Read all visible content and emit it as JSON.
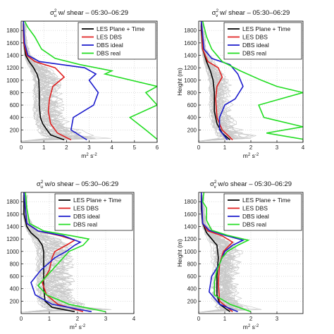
{
  "chart_data": [
    {
      "type": "line",
      "title_sym": "σ",
      "title_sup": "2",
      "title_sub": "u",
      "title_rest": " w/ shear – 05:30–06:29",
      "xlabel_main": "m",
      "xlabel_sup1": "2",
      "xlabel_mid": " s",
      "xlabel_sup2": "-2",
      "ylabel": "",
      "xlim": [
        0,
        6
      ],
      "ylim": [
        0,
        1950
      ],
      "xticks": [
        "0",
        "1",
        "2",
        "3",
        "4",
        "5",
        "6"
      ],
      "yticks": [
        "200",
        "400",
        "600",
        "800",
        "1000",
        "1200",
        "1400",
        "1600",
        "1800"
      ],
      "legend_position": "top-right",
      "grid": true,
      "series": [
        {
          "name": "LES Plane + Time",
          "color": "#000000",
          "points": [
            [
              1.9,
              40
            ],
            [
              1.3,
              120
            ],
            [
              1.1,
              220
            ],
            [
              0.95,
              300
            ],
            [
              0.85,
              400
            ],
            [
              0.8,
              600
            ],
            [
              0.8,
              800
            ],
            [
              0.78,
              1000
            ],
            [
              0.7,
              1100
            ],
            [
              0.55,
              1200
            ],
            [
              0.35,
              1300
            ],
            [
              0.2,
              1400
            ],
            [
              0.12,
              1600
            ],
            [
              0.1,
              1800
            ],
            [
              0.1,
              1950
            ]
          ]
        },
        {
          "name": "LES DBS",
          "color": "#e02020",
          "points": [
            [
              2.2,
              40
            ],
            [
              1.6,
              150
            ],
            [
              1.3,
              300
            ],
            [
              1.2,
              500
            ],
            [
              1.25,
              700
            ],
            [
              1.4,
              900
            ],
            [
              1.9,
              1050
            ],
            [
              1.5,
              1200
            ],
            [
              0.6,
              1300
            ],
            [
              0.25,
              1400
            ],
            [
              0.12,
              1600
            ],
            [
              0.1,
              1950
            ]
          ]
        },
        {
          "name": "DBS ideal",
          "color": "#1a1acc",
          "points": [
            [
              2.9,
              40
            ],
            [
              2.2,
              200
            ],
            [
              2.3,
              400
            ],
            [
              3.2,
              600
            ],
            [
              3.4,
              800
            ],
            [
              3.0,
              1000
            ],
            [
              3.3,
              1100
            ],
            [
              2.8,
              1200
            ],
            [
              0.8,
              1300
            ],
            [
              0.3,
              1400
            ],
            [
              0.15,
              1600
            ],
            [
              0.1,
              1950
            ]
          ]
        },
        {
          "name": "DBS real",
          "color": "#22dd22",
          "points": [
            [
              6.0,
              50
            ],
            [
              5.5,
              200
            ],
            [
              4.8,
              400
            ],
            [
              6.0,
              600
            ],
            [
              5.5,
              800
            ],
            [
              6.0,
              900
            ],
            [
              3.7,
              1100
            ],
            [
              4.0,
              1150
            ],
            [
              2.6,
              1250
            ],
            [
              1.5,
              1350
            ],
            [
              0.9,
              1500
            ],
            [
              0.6,
              1700
            ],
            [
              0.3,
              1850
            ],
            [
              0.15,
              1950
            ]
          ]
        }
      ]
    },
    {
      "type": "line",
      "title_sym": "σ",
      "title_sup": "2",
      "title_sub": "v",
      "title_rest": " w/ shear – 05:30–06:29",
      "xlabel_main": "m",
      "xlabel_sup1": "2",
      "xlabel_mid": " s",
      "xlabel_sup2": "-2",
      "ylabel": "Height (m)",
      "xlim": [
        0,
        4
      ],
      "ylim": [
        0,
        1950
      ],
      "xticks": [
        "0",
        "1",
        "2",
        "3",
        "4"
      ],
      "yticks": [
        "200",
        "400",
        "600",
        "800",
        "1000",
        "1200",
        "1400",
        "1600",
        "1800"
      ],
      "legend_position": "top-right",
      "grid": true,
      "series": [
        {
          "name": "LES Plane + Time",
          "color": "#000000",
          "points": [
            [
              1.2,
              40
            ],
            [
              0.9,
              150
            ],
            [
              0.7,
              300
            ],
            [
              0.6,
              500
            ],
            [
              0.6,
              800
            ],
            [
              0.55,
              1000
            ],
            [
              0.45,
              1150
            ],
            [
              0.3,
              1300
            ],
            [
              0.15,
              1500
            ],
            [
              0.1,
              1800
            ],
            [
              0.1,
              1950
            ]
          ]
        },
        {
          "name": "LES DBS",
          "color": "#e02020",
          "points": [
            [
              1.3,
              40
            ],
            [
              0.9,
              200
            ],
            [
              0.7,
              400
            ],
            [
              0.65,
              700
            ],
            [
              0.7,
              900
            ],
            [
              0.9,
              1050
            ],
            [
              0.75,
              1200
            ],
            [
              0.35,
              1300
            ],
            [
              0.15,
              1500
            ],
            [
              0.1,
              1950
            ]
          ]
        },
        {
          "name": "DBS ideal",
          "color": "#1a1acc",
          "points": [
            [
              1.1,
              40
            ],
            [
              0.8,
              200
            ],
            [
              0.8,
              400
            ],
            [
              1.0,
              600
            ],
            [
              1.4,
              700
            ],
            [
              1.7,
              900
            ],
            [
              1.5,
              1100
            ],
            [
              1.2,
              1250
            ],
            [
              0.5,
              1350
            ],
            [
              0.2,
              1500
            ],
            [
              0.1,
              1950
            ]
          ]
        },
        {
          "name": "DBS real",
          "color": "#22dd22",
          "points": [
            [
              4.0,
              50
            ],
            [
              2.6,
              150
            ],
            [
              4.0,
              250
            ],
            [
              2.5,
              400
            ],
            [
              2.3,
              600
            ],
            [
              4.0,
              800
            ],
            [
              3.0,
              900
            ],
            [
              2.4,
              1000
            ],
            [
              1.6,
              1150
            ],
            [
              0.9,
              1300
            ],
            [
              0.5,
              1500
            ],
            [
              0.3,
              1700
            ],
            [
              0.15,
              1950
            ]
          ]
        }
      ]
    },
    {
      "type": "line",
      "title_sym": "σ",
      "title_sup": "2",
      "title_sub": "u",
      "title_rest": " w/o shear – 05:30–06:29",
      "xlabel_main": "m",
      "xlabel_sup1": "2",
      "xlabel_mid": " s",
      "xlabel_sup2": "-2",
      "ylabel": "",
      "xlim": [
        0,
        4
      ],
      "ylim": [
        0,
        1950
      ],
      "xticks": [
        "0",
        "1",
        "2",
        "3",
        "4"
      ],
      "yticks": [
        "200",
        "400",
        "600",
        "800",
        "1000",
        "1200",
        "1400",
        "1600",
        "1800"
      ],
      "legend_position": "top-right",
      "grid": true,
      "series": [
        {
          "name": "LES Plane + Time",
          "color": "#000000",
          "points": [
            [
              1.9,
              30
            ],
            [
              1.1,
              100
            ],
            [
              0.85,
              200
            ],
            [
              0.8,
              400
            ],
            [
              0.8,
              700
            ],
            [
              0.8,
              1000
            ],
            [
              0.75,
              1100
            ],
            [
              0.6,
              1200
            ],
            [
              0.35,
              1300
            ],
            [
              0.2,
              1400
            ],
            [
              0.1,
              1600
            ],
            [
              0.1,
              1950
            ]
          ]
        },
        {
          "name": "LES DBS",
          "color": "#e02020",
          "points": [
            [
              2.2,
              30
            ],
            [
              1.3,
              150
            ],
            [
              0.9,
              300
            ],
            [
              0.75,
              500
            ],
            [
              1.0,
              700
            ],
            [
              1.1,
              900
            ],
            [
              1.2,
              1000
            ],
            [
              1.6,
              1100
            ],
            [
              1.9,
              1180
            ],
            [
              1.4,
              1250
            ],
            [
              0.6,
              1330
            ],
            [
              0.2,
              1450
            ],
            [
              0.1,
              1950
            ]
          ]
        },
        {
          "name": "DBS ideal",
          "color": "#1a1acc",
          "points": [
            [
              2.5,
              30
            ],
            [
              1.1,
              150
            ],
            [
              0.5,
              300
            ],
            [
              0.35,
              500
            ],
            [
              0.7,
              700
            ],
            [
              1.2,
              900
            ],
            [
              1.6,
              1000
            ],
            [
              1.9,
              1100
            ],
            [
              2.1,
              1150
            ],
            [
              1.5,
              1250
            ],
            [
              0.6,
              1330
            ],
            [
              0.2,
              1450
            ],
            [
              0.1,
              1950
            ]
          ]
        },
        {
          "name": "DBS real",
          "color": "#22dd22",
          "points": [
            [
              3.0,
              30
            ],
            [
              1.7,
              150
            ],
            [
              0.9,
              300
            ],
            [
              0.6,
              450
            ],
            [
              0.9,
              600
            ],
            [
              1.3,
              800
            ],
            [
              1.7,
              1000
            ],
            [
              2.2,
              1100
            ],
            [
              2.4,
              1200
            ],
            [
              1.8,
              1250
            ],
            [
              0.8,
              1330
            ],
            [
              0.3,
              1450
            ],
            [
              0.2,
              1700
            ],
            [
              0.15,
              1950
            ]
          ]
        }
      ]
    },
    {
      "type": "line",
      "title_sym": "σ",
      "title_sup": "2",
      "title_sub": "v",
      "title_rest": " w/o shear – 05:30–06:29",
      "xlabel_main": "m",
      "xlabel_sup1": "2",
      "xlabel_mid": " s",
      "xlabel_sup2": "-2",
      "ylabel": "Height (m)",
      "xlim": [
        0,
        4
      ],
      "ylim": [
        0,
        1950
      ],
      "xticks": [
        "0",
        "1",
        "2",
        "3"
      ],
      "yticks": [
        "200",
        "400",
        "600",
        "800",
        "1000",
        "1200",
        "1400",
        "1600",
        "1800"
      ],
      "legend_position": "top-right",
      "grid": true,
      "series": [
        {
          "name": "LES Plane + Time",
          "color": "#000000",
          "points": [
            [
              1.2,
              30
            ],
            [
              0.8,
              150
            ],
            [
              0.7,
              300
            ],
            [
              0.7,
              600
            ],
            [
              0.75,
              900
            ],
            [
              0.7,
              1100
            ],
            [
              0.5,
              1200
            ],
            [
              0.3,
              1300
            ],
            [
              0.15,
              1450
            ],
            [
              0.1,
              1700
            ],
            [
              0.1,
              1950
            ]
          ]
        },
        {
          "name": "LES DBS",
          "color": "#e02020",
          "points": [
            [
              1.3,
              30
            ],
            [
              0.8,
              200
            ],
            [
              0.75,
              500
            ],
            [
              0.8,
              800
            ],
            [
              0.95,
              1000
            ],
            [
              1.3,
              1150
            ],
            [
              0.9,
              1250
            ],
            [
              0.35,
              1330
            ],
            [
              0.15,
              1450
            ],
            [
              0.1,
              1950
            ]
          ]
        },
        {
          "name": "DBS ideal",
          "color": "#1a1acc",
          "points": [
            [
              1.5,
              30
            ],
            [
              0.8,
              150
            ],
            [
              0.4,
              350
            ],
            [
              0.5,
              600
            ],
            [
              0.8,
              800
            ],
            [
              1.0,
              1000
            ],
            [
              1.3,
              1100
            ],
            [
              1.7,
              1180
            ],
            [
              1.0,
              1260
            ],
            [
              0.4,
              1340
            ],
            [
              0.15,
              1450
            ],
            [
              0.1,
              1950
            ]
          ]
        },
        {
          "name": "DBS real",
          "color": "#22dd22",
          "points": [
            [
              2.0,
              30
            ],
            [
              1.2,
              150
            ],
            [
              0.6,
              300
            ],
            [
              0.6,
              500
            ],
            [
              0.7,
              700
            ],
            [
              0.9,
              900
            ],
            [
              1.1,
              1000
            ],
            [
              1.5,
              1100
            ],
            [
              1.9,
              1180
            ],
            [
              1.1,
              1260
            ],
            [
              0.5,
              1340
            ],
            [
              0.3,
              1500
            ],
            [
              0.3,
              1700
            ],
            [
              0.15,
              1800
            ],
            [
              0.2,
              1950
            ]
          ]
        }
      ]
    }
  ]
}
